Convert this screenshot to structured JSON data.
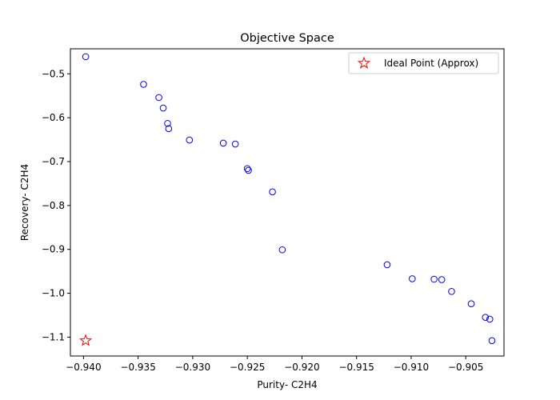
{
  "chart_data": {
    "type": "scatter",
    "title": "Objective Space",
    "xlabel": "Purity- C2H4",
    "ylabel": "Recovery- C2H4",
    "xlim": [
      -0.9412,
      -0.9015
    ],
    "ylim": [
      -1.143,
      -0.443
    ],
    "xticks": [
      -0.94,
      -0.935,
      -0.93,
      -0.925,
      -0.92,
      -0.915,
      -0.91,
      -0.905
    ],
    "xtick_labels": [
      "−0.940",
      "−0.935",
      "−0.930",
      "−0.925",
      "−0.920",
      "−0.915",
      "−0.910",
      "−0.905"
    ],
    "yticks": [
      -0.5,
      -0.6,
      -0.7,
      -0.8,
      -0.9,
      -1.0,
      -1.1
    ],
    "ytick_labels": [
      "−0.5",
      "−0.6",
      "−0.7",
      "−0.8",
      "−0.9",
      "−1.0",
      "−1.1"
    ],
    "grid": false,
    "legend_position": "top-right",
    "series": [
      {
        "marker": "circle-open",
        "color": "#0000ff",
        "points": [
          {
            "x": -0.9398,
            "y": -0.461
          },
          {
            "x": -0.9345,
            "y": -0.524
          },
          {
            "x": -0.9331,
            "y": -0.554
          },
          {
            "x": -0.9327,
            "y": -0.578
          },
          {
            "x": -0.9323,
            "y": -0.613
          },
          {
            "x": -0.9322,
            "y": -0.625
          },
          {
            "x": -0.9303,
            "y": -0.651
          },
          {
            "x": -0.9272,
            "y": -0.658
          },
          {
            "x": -0.9261,
            "y": -0.66
          },
          {
            "x": -0.925,
            "y": -0.716
          },
          {
            "x": -0.9249,
            "y": -0.72
          },
          {
            "x": -0.9227,
            "y": -0.769
          },
          {
            "x": -0.9218,
            "y": -0.901
          },
          {
            "x": -0.9122,
            "y": -0.935
          },
          {
            "x": -0.9099,
            "y": -0.967
          },
          {
            "x": -0.9079,
            "y": -0.968
          },
          {
            "x": -0.9072,
            "y": -0.969
          },
          {
            "x": -0.9063,
            "y": -0.996
          },
          {
            "x": -0.9045,
            "y": -1.024
          },
          {
            "x": -0.9032,
            "y": -1.055
          },
          {
            "x": -0.9028,
            "y": -1.059
          },
          {
            "x": -0.9026,
            "y": -1.108
          }
        ]
      },
      {
        "name": "Ideal Point (Approx)",
        "marker": "star-open",
        "color": "#ff0000",
        "points": [
          {
            "x": -0.9398,
            "y": -1.108
          }
        ]
      }
    ]
  }
}
